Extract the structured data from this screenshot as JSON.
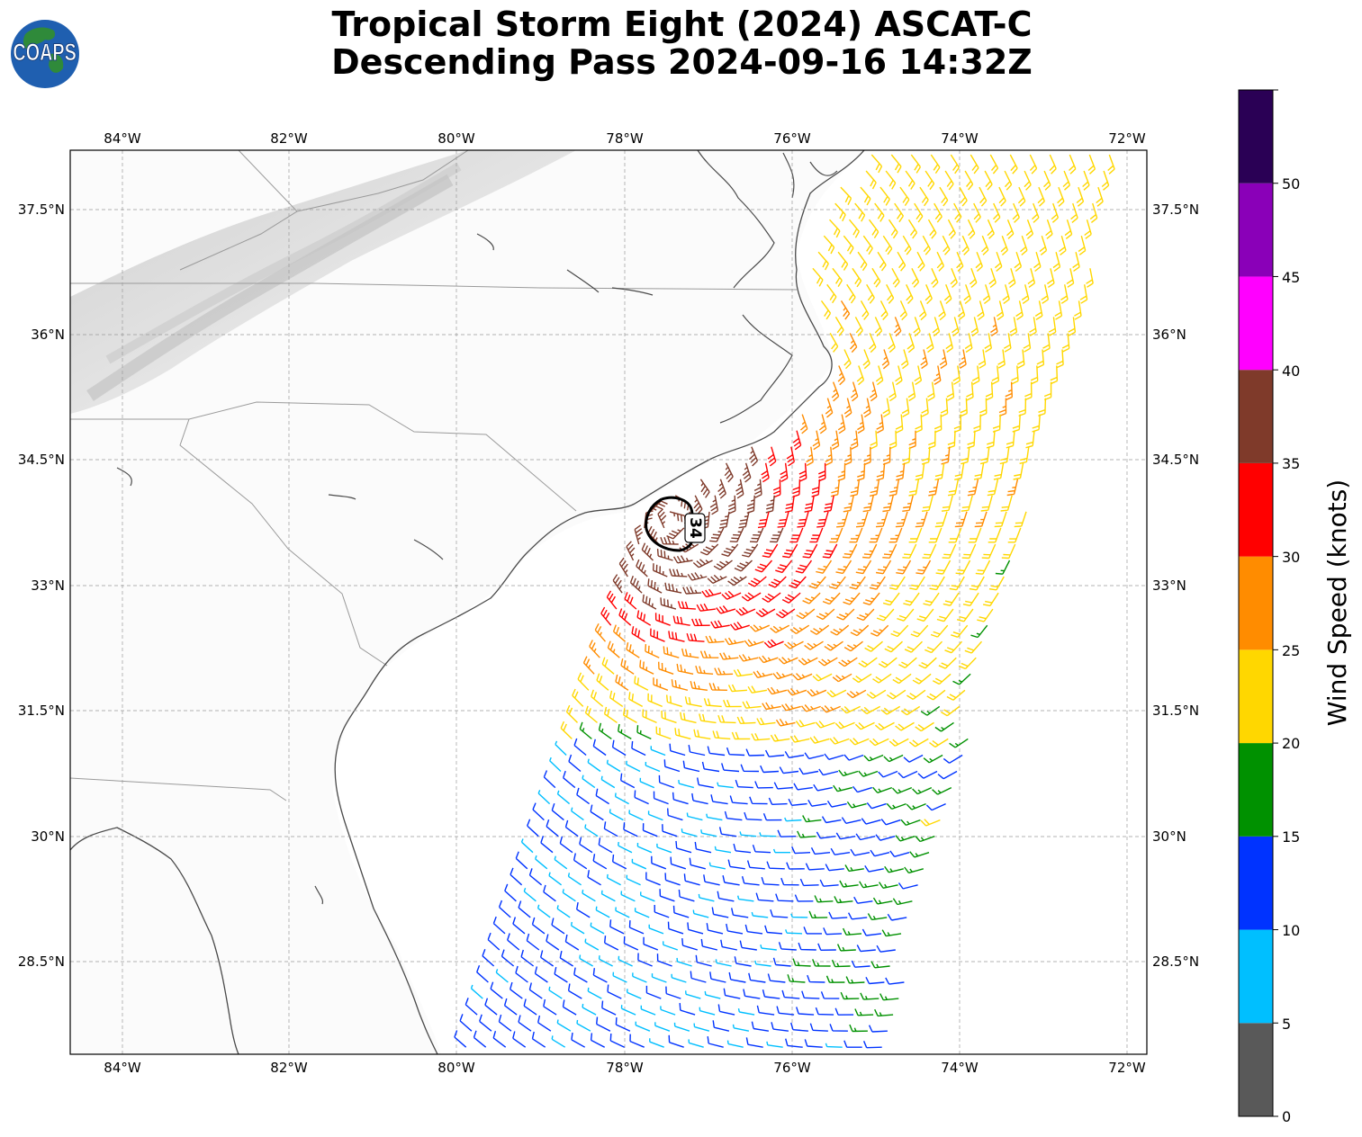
{
  "title": {
    "line1": "Tropical Storm Eight (2024) ASCAT-C",
    "line2": "Descending Pass 2024-09-16 14:32Z"
  },
  "logo": {
    "text": "COAPS",
    "icon": "globe-icon"
  },
  "map": {
    "lon_range": [
      -84.6,
      -71.8
    ],
    "lat_range": [
      26.9,
      38.15
    ],
    "lon_ticks": [
      "84°W",
      "82°W",
      "80°W",
      "78°W",
      "76°W",
      "74°W",
      "72°W"
    ],
    "lat_ticks": [
      "37.5°N",
      "36°N",
      "34.5°N",
      "33°N",
      "31.5°N",
      "30°N",
      "28.5°N"
    ],
    "grid": "dashed",
    "wind_radius_label": "34",
    "wind_radius_color": "#000000"
  },
  "colorbar": {
    "label": "Wind Speed (knots)",
    "ticks": [
      "0",
      "5",
      "10",
      "15",
      "20",
      "25",
      "30",
      "35",
      "40",
      "45",
      "50"
    ],
    "bins": [
      {
        "from": 0,
        "to": 5,
        "color": "#595959"
      },
      {
        "from": 5,
        "to": 10,
        "color": "#00bfff"
      },
      {
        "from": 10,
        "to": 15,
        "color": "#0033ff"
      },
      {
        "from": 15,
        "to": 20,
        "color": "#009100"
      },
      {
        "from": 20,
        "to": 25,
        "color": "#ffd700"
      },
      {
        "from": 25,
        "to": 30,
        "color": "#ff8c00"
      },
      {
        "from": 30,
        "to": 35,
        "color": "#ff0000"
      },
      {
        "from": 35,
        "to": 40,
        "color": "#7f3a2a"
      },
      {
        "from": 40,
        "to": 45,
        "color": "#ff00ff"
      },
      {
        "from": 45,
        "to": 50,
        "color": "#8a00b8"
      },
      {
        "from": 50,
        "to": 55,
        "color": "#2a0055"
      }
    ]
  }
}
